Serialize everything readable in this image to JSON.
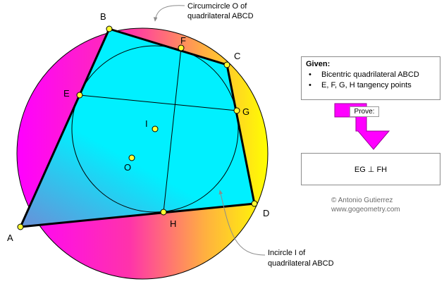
{
  "labels": {
    "A": "A",
    "B": "B",
    "C": "C",
    "D": "D",
    "E": "E",
    "F": "F",
    "G": "G",
    "H": "H",
    "I": "I",
    "O": "O"
  },
  "notes": {
    "circumcircle_line1": "Circumcircle O of",
    "circumcircle_line2": "quadrilateral ABCD",
    "incircle_line1": "Incircle I of",
    "incircle_line2": "quadrilateral ABCD"
  },
  "given": {
    "title": "Given:",
    "items": [
      "Bicentric quadrilateral ABCD",
      "E, F, G, H tangency points"
    ]
  },
  "prove": {
    "label": "Prove:",
    "statement": "EG ⊥ FH"
  },
  "credit": {
    "author": "© Antonio Gutierrez",
    "site": "www.gogeometry.com"
  },
  "colors": {
    "quad_fill_top": "#00f0ff",
    "quad_fill_bottom": "#6b96d6",
    "circle_gradient_left": "#ff00ff",
    "circle_gradient_right": "#ffff00",
    "point_fill": "#ffff33",
    "arrow_fill": "#ff00ff",
    "outline": "#000000"
  }
}
